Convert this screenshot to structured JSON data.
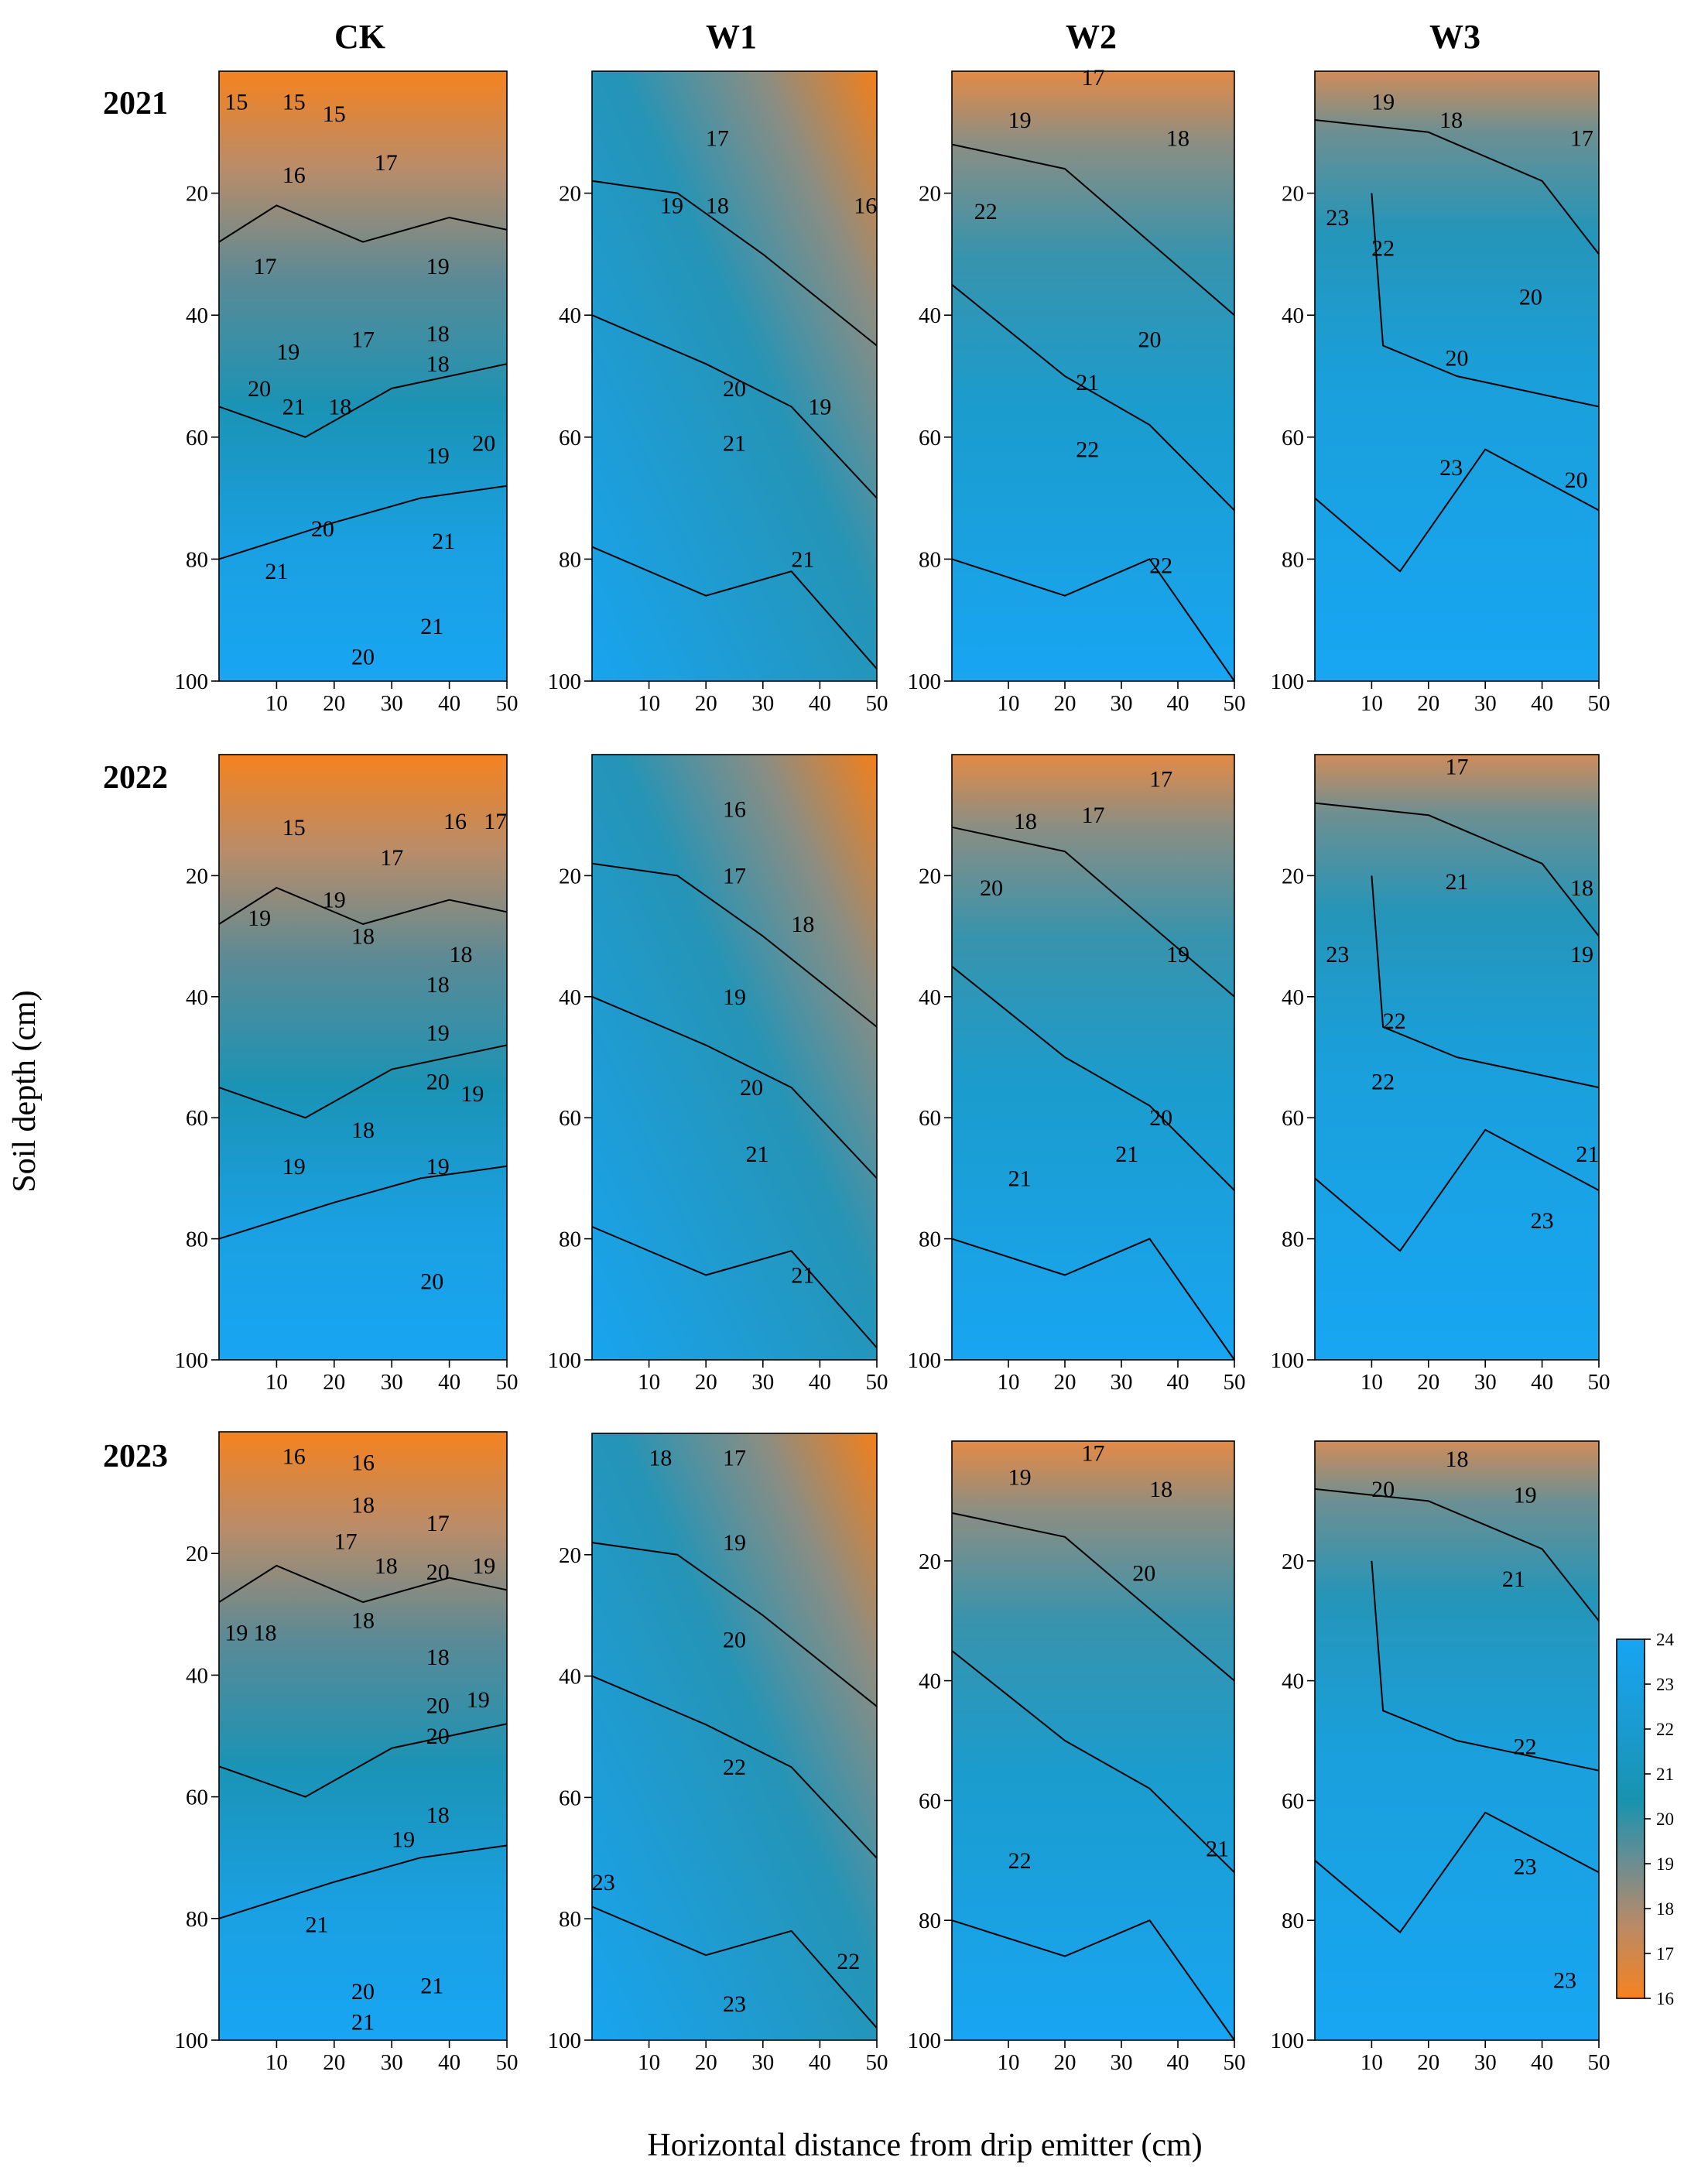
{
  "chart_data": {
    "type": "heatmap",
    "layout": "3 rows (years) x 4 columns (treatments) of filled contour maps of soil temperature",
    "column_titles": [
      "CK",
      "W1",
      "W2",
      "W3"
    ],
    "row_titles": [
      "2021",
      "2022",
      "2023"
    ],
    "xlabel": "Horizontal distance from drip emitter (cm)",
    "ylabel": "Soil depth (cm)",
    "x_ticks": [
      10,
      20,
      30,
      40,
      50
    ],
    "y_ticks": [
      20,
      40,
      60,
      80,
      100
    ],
    "xlim": [
      0,
      50
    ],
    "ylim": [
      0,
      100
    ],
    "colorbar": {
      "ticks": [
        24,
        23,
        22,
        21,
        20,
        19,
        18,
        17,
        16
      ],
      "range": [
        16,
        24
      ],
      "low_color": "#f5821f",
      "mid_color": "#1a93b5",
      "high_color": "#18a2ef"
    },
    "panels": [
      {
        "treatment": "CK",
        "year": "2021",
        "contour_labels": [
          {
            "label": "15",
            "x": 3,
            "y": 5
          },
          {
            "label": "15",
            "x": 13,
            "y": 5
          },
          {
            "label": "15",
            "x": 20,
            "y": 7
          },
          {
            "label": "16",
            "x": 13,
            "y": 17
          },
          {
            "label": "17",
            "x": 29,
            "y": 15
          },
          {
            "label": "17",
            "x": 8,
            "y": 32
          },
          {
            "label": "19",
            "x": 38,
            "y": 32
          },
          {
            "label": "19",
            "x": 12,
            "y": 46
          },
          {
            "label": "17",
            "x": 25,
            "y": 44
          },
          {
            "label": "18",
            "x": 38,
            "y": 43
          },
          {
            "label": "18",
            "x": 38,
            "y": 48
          },
          {
            "label": "20",
            "x": 7,
            "y": 52
          },
          {
            "label": "21",
            "x": 13,
            "y": 55
          },
          {
            "label": "18",
            "x": 21,
            "y": 55
          },
          {
            "label": "19",
            "x": 38,
            "y": 63
          },
          {
            "label": "20",
            "x": 46,
            "y": 61
          },
          {
            "label": "20",
            "x": 18,
            "y": 75
          },
          {
            "label": "21",
            "x": 39,
            "y": 77
          },
          {
            "label": "21",
            "x": 10,
            "y": 82
          },
          {
            "label": "21",
            "x": 37,
            "y": 91
          },
          {
            "label": "20",
            "x": 25,
            "y": 96
          }
        ]
      },
      {
        "treatment": "W1",
        "year": "2021",
        "contour_labels": [
          {
            "label": "17",
            "x": 22,
            "y": 11
          },
          {
            "label": "16",
            "x": 48,
            "y": 22
          },
          {
            "label": "19",
            "x": 14,
            "y": 22
          },
          {
            "label": "18",
            "x": 22,
            "y": 22
          },
          {
            "label": "20",
            "x": 25,
            "y": 52
          },
          {
            "label": "19",
            "x": 40,
            "y": 55
          },
          {
            "label": "21",
            "x": 25,
            "y": 61
          },
          {
            "label": "21",
            "x": 37,
            "y": 80
          }
        ]
      },
      {
        "treatment": "W2",
        "year": "2021",
        "contour_labels": [
          {
            "label": "17",
            "x": 25,
            "y": 1
          },
          {
            "label": "19",
            "x": 12,
            "y": 8
          },
          {
            "label": "18",
            "x": 40,
            "y": 11
          },
          {
            "label": "22",
            "x": 6,
            "y": 23
          },
          {
            "label": "20",
            "x": 35,
            "y": 44
          },
          {
            "label": "21",
            "x": 24,
            "y": 51
          },
          {
            "label": "22",
            "x": 24,
            "y": 62
          },
          {
            "label": "22",
            "x": 37,
            "y": 81
          }
        ]
      },
      {
        "treatment": "W3",
        "year": "2021",
        "contour_labels": [
          {
            "label": "19",
            "x": 12,
            "y": 5
          },
          {
            "label": "18",
            "x": 24,
            "y": 8
          },
          {
            "label": "17",
            "x": 47,
            "y": 11
          },
          {
            "label": "23",
            "x": 4,
            "y": 24
          },
          {
            "label": "22",
            "x": 12,
            "y": 29
          },
          {
            "label": "20",
            "x": 38,
            "y": 37
          },
          {
            "label": "20",
            "x": 25,
            "y": 47
          },
          {
            "label": "23",
            "x": 24,
            "y": 65
          },
          {
            "label": "20",
            "x": 46,
            "y": 67
          }
        ]
      },
      {
        "treatment": "CK",
        "year": "2022",
        "contour_labels": [
          {
            "label": "15",
            "x": 13,
            "y": 12
          },
          {
            "label": "16",
            "x": 41,
            "y": 11
          },
          {
            "label": "17",
            "x": 48,
            "y": 11
          },
          {
            "label": "17",
            "x": 30,
            "y": 17
          },
          {
            "label": "19",
            "x": 7,
            "y": 27
          },
          {
            "label": "19",
            "x": 20,
            "y": 24
          },
          {
            "label": "18",
            "x": 25,
            "y": 30
          },
          {
            "label": "18",
            "x": 42,
            "y": 33
          },
          {
            "label": "18",
            "x": 38,
            "y": 38
          },
          {
            "label": "19",
            "x": 38,
            "y": 46
          },
          {
            "label": "20",
            "x": 38,
            "y": 54
          },
          {
            "label": "19",
            "x": 44,
            "y": 56
          },
          {
            "label": "18",
            "x": 25,
            "y": 62
          },
          {
            "label": "19",
            "x": 13,
            "y": 68
          },
          {
            "label": "19",
            "x": 38,
            "y": 68
          },
          {
            "label": "20",
            "x": 37,
            "y": 87
          }
        ]
      },
      {
        "treatment": "W1",
        "year": "2022",
        "contour_labels": [
          {
            "label": "16",
            "x": 25,
            "y": 9
          },
          {
            "label": "17",
            "x": 25,
            "y": 20
          },
          {
            "label": "18",
            "x": 37,
            "y": 28
          },
          {
            "label": "19",
            "x": 25,
            "y": 40
          },
          {
            "label": "20",
            "x": 28,
            "y": 55
          },
          {
            "label": "21",
            "x": 29,
            "y": 66
          },
          {
            "label": "21",
            "x": 37,
            "y": 86
          }
        ]
      },
      {
        "treatment": "W2",
        "year": "2022",
        "contour_labels": [
          {
            "label": "17",
            "x": 37,
            "y": 4
          },
          {
            "label": "18",
            "x": 13,
            "y": 11
          },
          {
            "label": "17",
            "x": 25,
            "y": 10
          },
          {
            "label": "20",
            "x": 7,
            "y": 22
          },
          {
            "label": "19",
            "x": 40,
            "y": 33
          },
          {
            "label": "20",
            "x": 37,
            "y": 60
          },
          {
            "label": "21",
            "x": 31,
            "y": 66
          },
          {
            "label": "21",
            "x": 12,
            "y": 70
          }
        ]
      },
      {
        "treatment": "W3",
        "year": "2022",
        "contour_labels": [
          {
            "label": "17",
            "x": 25,
            "y": 2
          },
          {
            "label": "21",
            "x": 25,
            "y": 21
          },
          {
            "label": "18",
            "x": 47,
            "y": 22
          },
          {
            "label": "23",
            "x": 4,
            "y": 33
          },
          {
            "label": "19",
            "x": 47,
            "y": 33
          },
          {
            "label": "22",
            "x": 14,
            "y": 44
          },
          {
            "label": "22",
            "x": 12,
            "y": 54
          },
          {
            "label": "21",
            "x": 48,
            "y": 66
          },
          {
            "label": "23",
            "x": 40,
            "y": 77
          }
        ]
      },
      {
        "treatment": "CK",
        "year": "2023",
        "contour_labels": [
          {
            "label": "16",
            "x": 13,
            "y": 4
          },
          {
            "label": "16",
            "x": 25,
            "y": 5
          },
          {
            "label": "18",
            "x": 25,
            "y": 12
          },
          {
            "label": "17",
            "x": 22,
            "y": 18
          },
          {
            "label": "17",
            "x": 38,
            "y": 15
          },
          {
            "label": "18",
            "x": 29,
            "y": 22
          },
          {
            "label": "20",
            "x": 38,
            "y": 23
          },
          {
            "label": "19",
            "x": 46,
            "y": 22
          },
          {
            "label": "19",
            "x": 3,
            "y": 33
          },
          {
            "label": "18",
            "x": 8,
            "y": 33
          },
          {
            "label": "18",
            "x": 25,
            "y": 31
          },
          {
            "label": "18",
            "x": 38,
            "y": 37
          },
          {
            "label": "20",
            "x": 38,
            "y": 45
          },
          {
            "label": "19",
            "x": 45,
            "y": 44
          },
          {
            "label": "20",
            "x": 38,
            "y": 50
          },
          {
            "label": "18",
            "x": 38,
            "y": 63
          },
          {
            "label": "19",
            "x": 32,
            "y": 67
          },
          {
            "label": "21",
            "x": 17,
            "y": 81
          },
          {
            "label": "20",
            "x": 25,
            "y": 92
          },
          {
            "label": "21",
            "x": 37,
            "y": 91
          },
          {
            "label": "21",
            "x": 25,
            "y": 97
          }
        ]
      },
      {
        "treatment": "W1",
        "year": "2023",
        "contour_labels": [
          {
            "label": "18",
            "x": 12,
            "y": 4
          },
          {
            "label": "17",
            "x": 25,
            "y": 4
          },
          {
            "label": "19",
            "x": 25,
            "y": 18
          },
          {
            "label": "20",
            "x": 25,
            "y": 34
          },
          {
            "label": "22",
            "x": 25,
            "y": 55
          },
          {
            "label": "23",
            "x": 2,
            "y": 74
          },
          {
            "label": "22",
            "x": 45,
            "y": 87
          },
          {
            "label": "23",
            "x": 25,
            "y": 94
          }
        ]
      },
      {
        "treatment": "W2",
        "year": "2023",
        "contour_labels": [
          {
            "label": "17",
            "x": 25,
            "y": 2
          },
          {
            "label": "19",
            "x": 12,
            "y": 6
          },
          {
            "label": "18",
            "x": 37,
            "y": 8
          },
          {
            "label": "20",
            "x": 34,
            "y": 22
          },
          {
            "label": "22",
            "x": 12,
            "y": 70
          },
          {
            "label": "21",
            "x": 47,
            "y": 68
          }
        ]
      },
      {
        "treatment": "W3",
        "year": "2023",
        "contour_labels": [
          {
            "label": "18",
            "x": 25,
            "y": 3
          },
          {
            "label": "20",
            "x": 12,
            "y": 8
          },
          {
            "label": "19",
            "x": 37,
            "y": 9
          },
          {
            "label": "21",
            "x": 35,
            "y": 23
          },
          {
            "label": "22",
            "x": 37,
            "y": 51
          },
          {
            "label": "23",
            "x": 37,
            "y": 71
          },
          {
            "label": "23",
            "x": 44,
            "y": 90
          }
        ]
      }
    ]
  }
}
